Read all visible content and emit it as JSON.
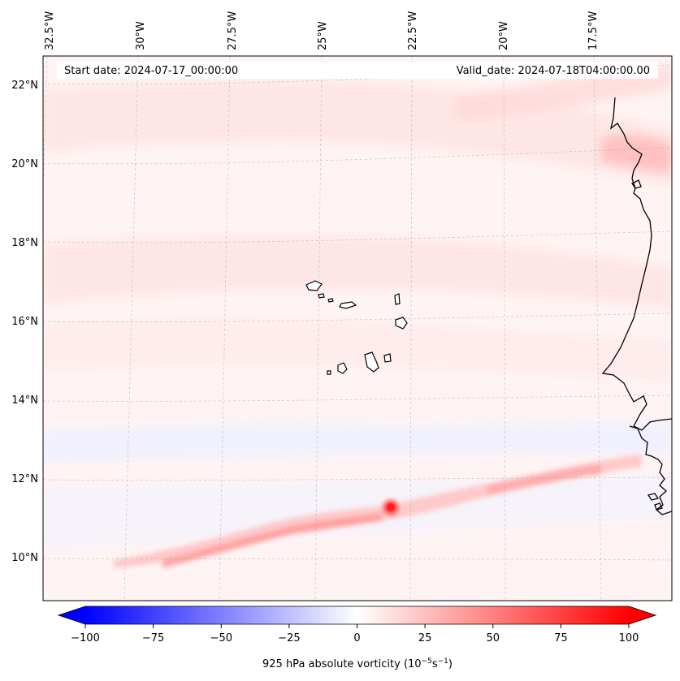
{
  "map": {
    "start_date_text": "Start date: 2024-07-17_00:00:00",
    "valid_date_text": "Valid_date: 2024-07-18T04:00:00.00",
    "longitude_labels": [
      "32.5°W",
      "30°W",
      "27.5°W",
      "25°W",
      "22.5°W",
      "20°W",
      "17.5°W"
    ],
    "latitude_labels": [
      "22°N",
      "20°N",
      "18°N",
      "16°N",
      "14°N",
      "12°N",
      "10°N"
    ]
  },
  "colorbar": {
    "min": -100,
    "max": 100,
    "tick_labels": [
      "−100",
      "−75",
      "−50",
      "−25",
      "0",
      "25",
      "50",
      "75",
      "100"
    ],
    "label": "925 hPa absolute vorticity (10",
    "label_exp1": "−5",
    "label_mid": "s",
    "label_exp2": "−1",
    "label_end": ")",
    "negative_color": "#0000ff",
    "positive_color": "#ff0000"
  }
}
